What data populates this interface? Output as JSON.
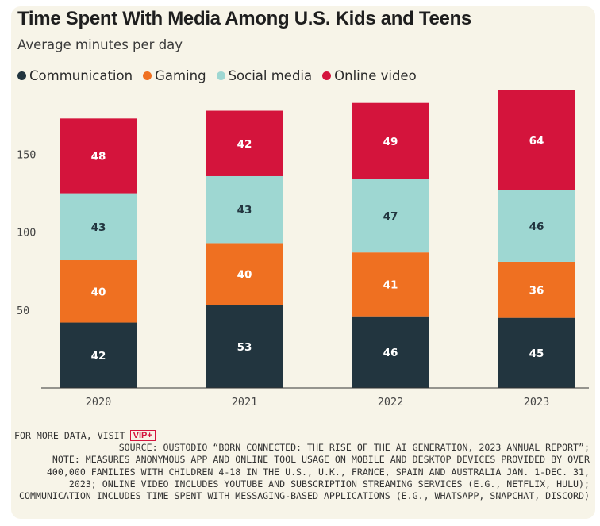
{
  "title": "Time Spent With Media Among U.S. Kids and Teens",
  "subtitle": "Average minutes per day",
  "legend": [
    {
      "label": "Communication",
      "color": "#22353f"
    },
    {
      "label": "Gaming",
      "color": "#ef7021"
    },
    {
      "label": "Social media",
      "color": "#9ed7d2"
    },
    {
      "label": "Online video",
      "color": "#d4143c"
    }
  ],
  "chart_data": {
    "type": "bar",
    "stacked": true,
    "title": "Time Spent With Media Among U.S. Kids and Teens",
    "subtitle": "Average minutes per day",
    "categories": [
      "2020",
      "2021",
      "2022",
      "2023"
    ],
    "series": [
      {
        "name": "Communication",
        "color": "#22353f",
        "values": [
          42,
          53,
          46,
          45
        ]
      },
      {
        "name": "Gaming",
        "color": "#ef7021",
        "values": [
          40,
          40,
          41,
          36
        ]
      },
      {
        "name": "Social media",
        "color": "#9ed7d2",
        "values": [
          43,
          43,
          47,
          46
        ]
      },
      {
        "name": "Online video",
        "color": "#d4143c",
        "values": [
          48,
          42,
          49,
          64
        ]
      }
    ],
    "yticks": [
      50,
      100,
      150
    ],
    "ylim": [
      0,
      191
    ],
    "xlabel": "",
    "ylabel": ""
  },
  "footer": {
    "more_data": "FOR MORE DATA, VISIT",
    "vip_label": "VIP+",
    "source": "SOURCE: QUSTODIO “BORN CONNECTED: THE RISE OF THE AI GENERATION, 2023 ANNUAL REPORT”;",
    "note": "NOTE: MEASURES ANONYMOUS APP AND ONLINE TOOL USAGE ON MOBILE AND DESKTOP DEVICES PROVIDED BY OVER 400,000 FAMILIES WITH CHILDREN 4-18 IN THE U.S., U.K., FRANCE, SPAIN AND AUSTRALIA JAN. 1-DEC. 31, 2023; ONLINE VIDEO INCLUDES YOUTUBE AND SUBSCRIPTION STREAMING SERVICES (E.G., NETFLIX, HULU); COMMUNICATION INCLUDES TIME SPENT WITH MESSAGING-BASED APPLICATIONS (E.G., WHATSAPP, SNAPCHAT, DISCORD)"
  }
}
